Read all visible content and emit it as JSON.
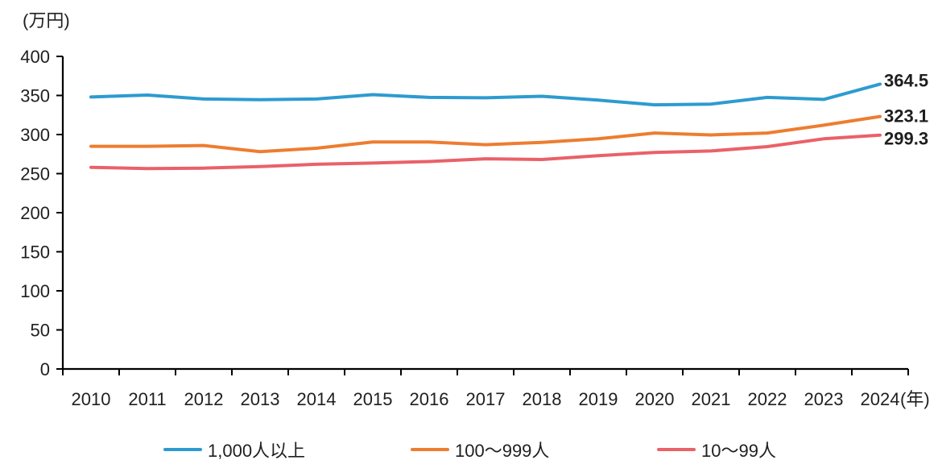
{
  "chart_data": {
    "type": "line",
    "categories": [
      "2010",
      "2011",
      "2012",
      "2013",
      "2014",
      "2015",
      "2016",
      "2017",
      "2018",
      "2019",
      "2020",
      "2021",
      "2022",
      "2023",
      "2024"
    ],
    "series": [
      {
        "name": "1,000人以上",
        "color": "#2D9BD0",
        "end_label": "364.5",
        "values": [
          348,
          350.5,
          345.5,
          344.5,
          345.5,
          351,
          347.5,
          347,
          349,
          344,
          338,
          339,
          347.5,
          345,
          364.5
        ]
      },
      {
        "name": "100〜999人",
        "color": "#ED7D31",
        "end_label": "323.1",
        "values": [
          285,
          285,
          286,
          278,
          282.5,
          290.5,
          290.5,
          287,
          290,
          294.5,
          302,
          299.5,
          302,
          312,
          323.1
        ]
      },
      {
        "name": "10〜99人",
        "color": "#EA6168",
        "end_label": "299.3",
        "values": [
          258,
          256.5,
          257,
          259,
          262,
          263.5,
          265.5,
          269,
          268,
          273,
          277,
          279,
          284.5,
          294.5,
          299.3
        ]
      }
    ],
    "ylabel": "(万円)",
    "xlabel": "(年)",
    "ylim": [
      0,
      400
    ],
    "y_tick_step": 50,
    "grid": false,
    "legend_position": "bottom",
    "axis_color": "#000000",
    "text_color": "#1f1f1f"
  }
}
